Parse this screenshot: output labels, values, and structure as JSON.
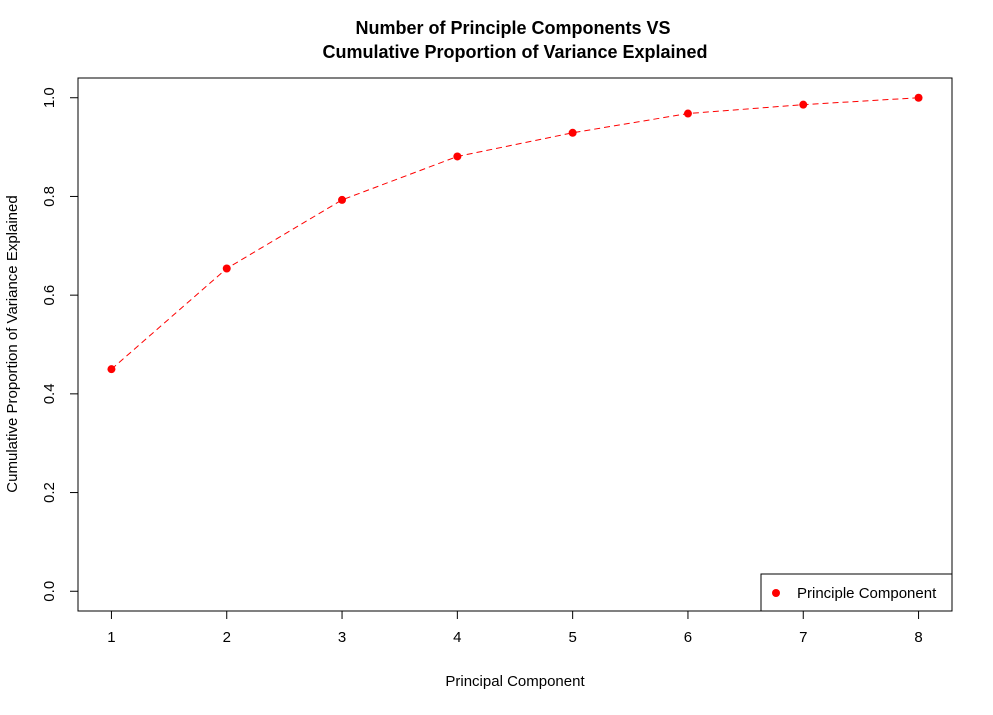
{
  "chart_data": {
    "type": "line",
    "title_lines": [
      "Number of Principle Components VS",
      "Cumulative Proportion of Variance Explained"
    ],
    "xlabel": "Principal Component",
    "ylabel": "Cumulative Proportion of Variance Explained",
    "x": [
      1,
      2,
      3,
      4,
      5,
      6,
      7,
      8
    ],
    "series": [
      {
        "name": "Principle Component",
        "values": [
          0.45,
          0.654,
          0.793,
          0.881,
          0.929,
          0.968,
          0.986,
          1.0
        ]
      }
    ],
    "xlim": [
      0.71,
      8.29
    ],
    "ylim": [
      -0.04,
      1.04
    ],
    "xticks": [
      "1",
      "2",
      "3",
      "4",
      "5",
      "6",
      "7",
      "8"
    ],
    "yticks": [
      "0.0",
      "0.2",
      "0.4",
      "0.6",
      "0.8",
      "1.0"
    ],
    "ytick_values": [
      0.0,
      0.2,
      0.4,
      0.6,
      0.8,
      1.0
    ],
    "grid": false,
    "legend_position": "bottom-right",
    "line_style": "dashed",
    "marker": "filled-circle",
    "color": "#ff0000"
  }
}
